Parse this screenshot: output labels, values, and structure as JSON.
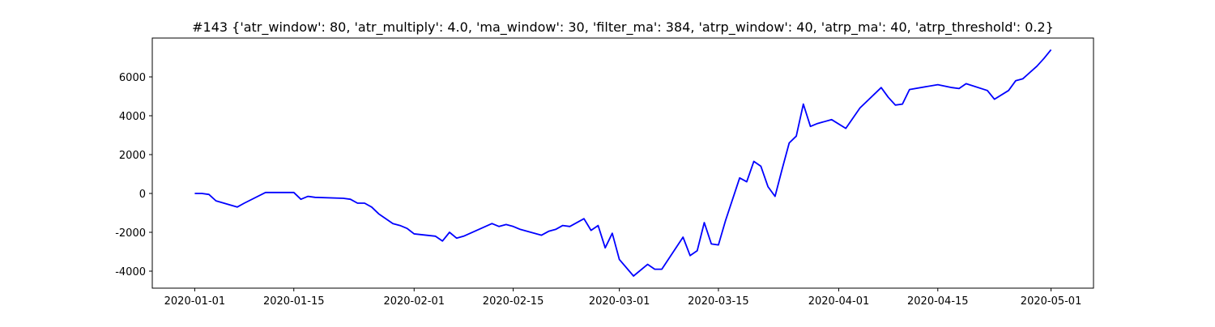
{
  "chart_data": {
    "type": "line",
    "title": "#143 {'atr_window': 80, 'atr_multiply': 4.0, 'ma_window': 30, 'filter_ma': 384, 'atrp_window': 40, 'atrp_ma': 40, 'atrp_threshold': 0.2}",
    "x": [
      "2020-01-01",
      "2020-01-02",
      "2020-01-03",
      "2020-01-04",
      "2020-01-07",
      "2020-01-08",
      "2020-01-11",
      "2020-01-15",
      "2020-01-16",
      "2020-01-17",
      "2020-01-18",
      "2020-01-22",
      "2020-01-23",
      "2020-01-24",
      "2020-01-25",
      "2020-01-26",
      "2020-01-27",
      "2020-01-28",
      "2020-01-29",
      "2020-01-30",
      "2020-01-31",
      "2020-02-01",
      "2020-02-04",
      "2020-02-05",
      "2020-02-06",
      "2020-02-07",
      "2020-02-08",
      "2020-02-12",
      "2020-02-13",
      "2020-02-14",
      "2020-02-15",
      "2020-02-16",
      "2020-02-19",
      "2020-02-20",
      "2020-02-21",
      "2020-02-22",
      "2020-02-23",
      "2020-02-25",
      "2020-02-26",
      "2020-02-27",
      "2020-02-28",
      "2020-02-29",
      "2020-03-01",
      "2020-03-03",
      "2020-03-05",
      "2020-03-06",
      "2020-03-07",
      "2020-03-10",
      "2020-03-11",
      "2020-03-12",
      "2020-03-13",
      "2020-03-14",
      "2020-03-15",
      "2020-03-16",
      "2020-03-18",
      "2020-03-19",
      "2020-03-20",
      "2020-03-21",
      "2020-03-22",
      "2020-03-23",
      "2020-03-24",
      "2020-03-25",
      "2020-03-26",
      "2020-03-27",
      "2020-03-28",
      "2020-03-29",
      "2020-03-31",
      "2020-04-02",
      "2020-04-04",
      "2020-04-07",
      "2020-04-08",
      "2020-04-09",
      "2020-04-10",
      "2020-04-11",
      "2020-04-15",
      "2020-04-17",
      "2020-04-18",
      "2020-04-19",
      "2020-04-22",
      "2020-04-23",
      "2020-04-25",
      "2020-04-26",
      "2020-04-27",
      "2020-04-29",
      "2020-04-30",
      "2020-05-01"
    ],
    "series": [
      {
        "color": "#0000ff",
        "values": [
          0,
          0,
          -50,
          -380,
          -700,
          -500,
          50,
          50,
          -300,
          -150,
          -200,
          -250,
          -300,
          -500,
          -500,
          -700,
          -1050,
          -1300,
          -1550,
          -1650,
          -1800,
          -2080,
          -2200,
          -2450,
          -2000,
          -2300,
          -2200,
          -1550,
          -1700,
          -1600,
          -1700,
          -1850,
          -2150,
          -1950,
          -1850,
          -1650,
          -1700,
          -1300,
          -1900,
          -1650,
          -2800,
          -2050,
          -3400,
          -4250,
          -3650,
          -3900,
          -3900,
          -2250,
          -3200,
          -2950,
          -1500,
          -2600,
          -2650,
          -1400,
          800,
          600,
          1650,
          1400,
          350,
          -150,
          1250,
          2600,
          2950,
          4600,
          3450,
          3600,
          3800,
          3350,
          4400,
          5450,
          4950,
          4550,
          4600,
          5350,
          5600,
          5450,
          5400,
          5650,
          5300,
          4850,
          5300,
          5800,
          5900,
          6550,
          6950,
          7400
        ]
      }
    ],
    "xlim": [
      "2019-12-26",
      "2020-05-07"
    ],
    "xticks": [
      "2020-01-01",
      "2020-01-15",
      "2020-02-01",
      "2020-02-15",
      "2020-03-01",
      "2020-03-15",
      "2020-04-01",
      "2020-04-15",
      "2020-05-01"
    ],
    "ylim": [
      -4875,
      8000
    ],
    "yticks": [
      -4000,
      -2000,
      0,
      2000,
      4000,
      6000
    ],
    "grid": false
  }
}
